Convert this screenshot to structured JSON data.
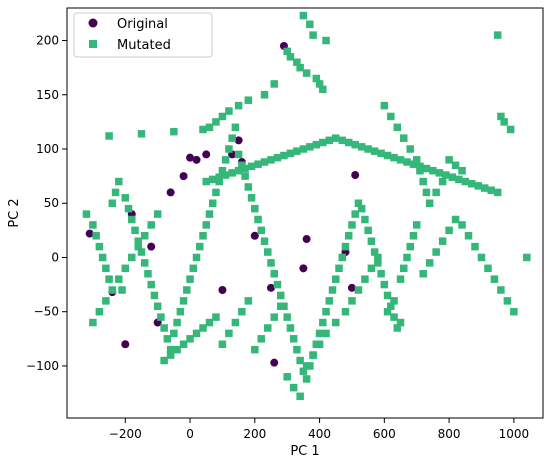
{
  "chart_data": {
    "type": "scatter",
    "title": "",
    "xlabel": "PC 1",
    "ylabel": "PC 2",
    "xlim": [
      -380,
      1090
    ],
    "ylim": [
      -148,
      230
    ],
    "xticks": [
      -200,
      0,
      200,
      400,
      600,
      800,
      1000
    ],
    "yticks": [
      -100,
      -50,
      0,
      50,
      100,
      150,
      200
    ],
    "grid": false,
    "legend_position": "top-left",
    "series": [
      {
        "name": "Original",
        "marker": "circle",
        "color": "#440154",
        "x": [
          -310,
          -240,
          -180,
          -120,
          -60,
          -20,
          0,
          20,
          50,
          130,
          150,
          160,
          200,
          260,
          290,
          350,
          360,
          480,
          500,
          510,
          -200,
          -100,
          100,
          250
        ],
        "y": [
          22,
          -32,
          40,
          10,
          60,
          75,
          92,
          90,
          95,
          95,
          108,
          88,
          20,
          -97,
          195,
          -10,
          17,
          5,
          -28,
          76,
          -80,
          -60,
          -30,
          -28
        ]
      },
      {
        "name": "Mutated",
        "marker": "square",
        "color": "#35b779",
        "x": [
          -320,
          -300,
          -290,
          -280,
          -270,
          -260,
          -250,
          -240,
          -230,
          -220,
          -210,
          -200,
          -190,
          -180,
          -170,
          -160,
          -150,
          -140,
          -130,
          -120,
          -110,
          -100,
          -90,
          -80,
          -70,
          -60,
          -50,
          -40,
          -30,
          -20,
          -10,
          0,
          10,
          20,
          30,
          40,
          50,
          60,
          70,
          80,
          90,
          100,
          110,
          120,
          130,
          140,
          150,
          160,
          170,
          180,
          190,
          200,
          210,
          220,
          230,
          240,
          250,
          260,
          270,
          280,
          290,
          300,
          310,
          320,
          330,
          340,
          350,
          360,
          370,
          380,
          390,
          400,
          410,
          420,
          430,
          440,
          450,
          460,
          470,
          480,
          490,
          500,
          510,
          520,
          530,
          540,
          550,
          560,
          570,
          580,
          590,
          600,
          610,
          620,
          630,
          640,
          650,
          660,
          670,
          680,
          690,
          700,
          720,
          740,
          760,
          780,
          800,
          820,
          840,
          860,
          880,
          900,
          920,
          940,
          960,
          980,
          1000,
          1040,
          350,
          370,
          380,
          420,
          300,
          310,
          330,
          340,
          360,
          390,
          400,
          410,
          260,
          230,
          180,
          150,
          120,
          100,
          80,
          60,
          40,
          -50,
          -150,
          -250,
          950,
          960,
          970,
          990,
          800,
          820,
          840,
          780,
          760,
          740,
          600,
          620,
          640,
          660,
          680,
          700,
          710,
          720,
          730,
          650,
          610,
          630,
          400,
          420,
          450,
          480,
          500,
          520,
          540,
          560,
          580,
          300,
          320,
          340,
          360,
          380,
          200,
          220,
          240,
          260,
          280,
          100,
          120,
          140,
          160,
          180,
          -80,
          -60,
          -40,
          -20,
          0,
          20,
          40,
          60,
          80,
          -300,
          -280,
          -260,
          -240,
          -220,
          -200,
          -180,
          -160,
          -140,
          -120,
          -100,
          50,
          70,
          90,
          110,
          130,
          150,
          170,
          190,
          210,
          230,
          250,
          270,
          290,
          310,
          330,
          350,
          370,
          390,
          410,
          430,
          450,
          470,
          490,
          510,
          530,
          550,
          570,
          590,
          610,
          630,
          650,
          670,
          690,
          710,
          730,
          750,
          770,
          790,
          810,
          830,
          850,
          870,
          890,
          910,
          930,
          950
        ],
        "y": [
          40,
          30,
          20,
          10,
          0,
          -10,
          -20,
          50,
          60,
          70,
          -30,
          55,
          45,
          35,
          25,
          15,
          5,
          -5,
          -15,
          -25,
          -35,
          -45,
          -55,
          -65,
          -75,
          -85,
          -70,
          -60,
          -50,
          -40,
          -30,
          -20,
          -10,
          0,
          10,
          20,
          30,
          40,
          50,
          60,
          70,
          80,
          90,
          100,
          110,
          120,
          95,
          85,
          75,
          65,
          55,
          45,
          35,
          25,
          15,
          5,
          -5,
          -15,
          -25,
          -35,
          -45,
          -55,
          -65,
          -75,
          -85,
          -95,
          -105,
          -112,
          -100,
          -90,
          -80,
          -70,
          -60,
          -50,
          -40,
          -30,
          -20,
          -10,
          0,
          10,
          20,
          30,
          40,
          50,
          45,
          35,
          25,
          15,
          5,
          -5,
          -15,
          -25,
          -35,
          -45,
          -55,
          -65,
          -20,
          -10,
          0,
          10,
          20,
          30,
          -15,
          -5,
          5,
          15,
          25,
          35,
          30,
          20,
          10,
          0,
          -10,
          -20,
          -30,
          -40,
          -50,
          0,
          223,
          215,
          205,
          200,
          190,
          185,
          180,
          175,
          170,
          165,
          160,
          155,
          160,
          150,
          145,
          140,
          135,
          130,
          125,
          120,
          118,
          116,
          114,
          112,
          205,
          130,
          125,
          118,
          90,
          85,
          80,
          70,
          60,
          50,
          140,
          130,
          120,
          110,
          100,
          90,
          80,
          70,
          60,
          -60,
          -50,
          -40,
          -80,
          -70,
          -60,
          -50,
          -40,
          -30,
          -20,
          -10,
          0,
          -110,
          -120,
          -128,
          -100,
          -90,
          -85,
          -75,
          -65,
          -55,
          -45,
          -80,
          -70,
          -60,
          -50,
          -40,
          -95,
          -90,
          -85,
          -80,
          -75,
          -70,
          -65,
          -60,
          -55,
          -60,
          -50,
          -40,
          -30,
          -20,
          -10,
          0,
          10,
          20,
          30,
          40,
          70,
          72,
          74,
          76,
          78,
          80,
          82,
          84,
          86,
          88,
          90,
          92,
          94,
          96,
          98,
          100,
          102,
          104,
          106,
          108,
          110,
          108,
          106,
          104,
          102,
          100,
          98,
          96,
          94,
          92,
          90,
          88,
          86,
          84,
          82,
          80,
          78,
          76,
          74,
          72,
          70,
          68,
          66,
          64,
          62,
          60
        ]
      }
    ]
  }
}
